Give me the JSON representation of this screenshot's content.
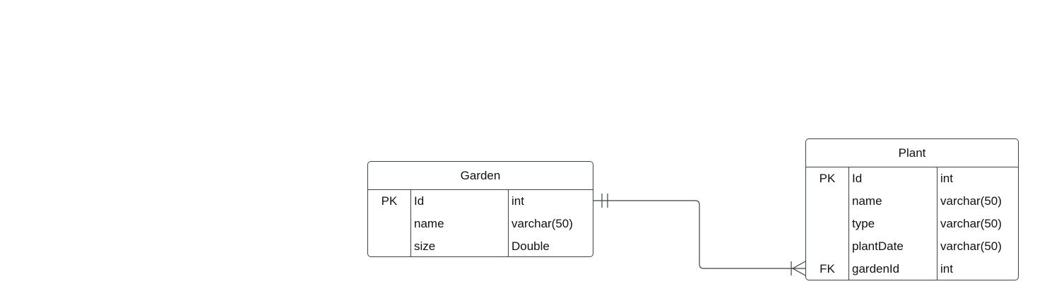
{
  "diagram": {
    "type": "entity-relationship",
    "entities": [
      {
        "title": "Garden",
        "fields": [
          {
            "key": "PK",
            "name": "Id",
            "type": "int"
          },
          {
            "key": "",
            "name": "name",
            "type": "varchar(50)"
          },
          {
            "key": "",
            "name": "size",
            "type": "Double"
          }
        ]
      },
      {
        "title": "Plant",
        "fields": [
          {
            "key": "PK",
            "name": "Id",
            "type": "int"
          },
          {
            "key": "",
            "name": "name",
            "type": "varchar(50)"
          },
          {
            "key": "",
            "name": "type",
            "type": "varchar(50)"
          },
          {
            "key": "",
            "name": "plantDate",
            "type": "varchar(50)"
          },
          {
            "key": "FK",
            "name": "gardenId",
            "type": "int"
          }
        ]
      }
    ],
    "relationships": [
      {
        "from_entity": "Garden",
        "from_field": "Id",
        "from_cardinality": "exactly-one",
        "to_entity": "Plant",
        "to_field": "gardenId",
        "to_cardinality": "one-or-many"
      }
    ],
    "colors": {
      "line": "#3a414a",
      "background": "#ffffff",
      "text": "#111111"
    }
  }
}
